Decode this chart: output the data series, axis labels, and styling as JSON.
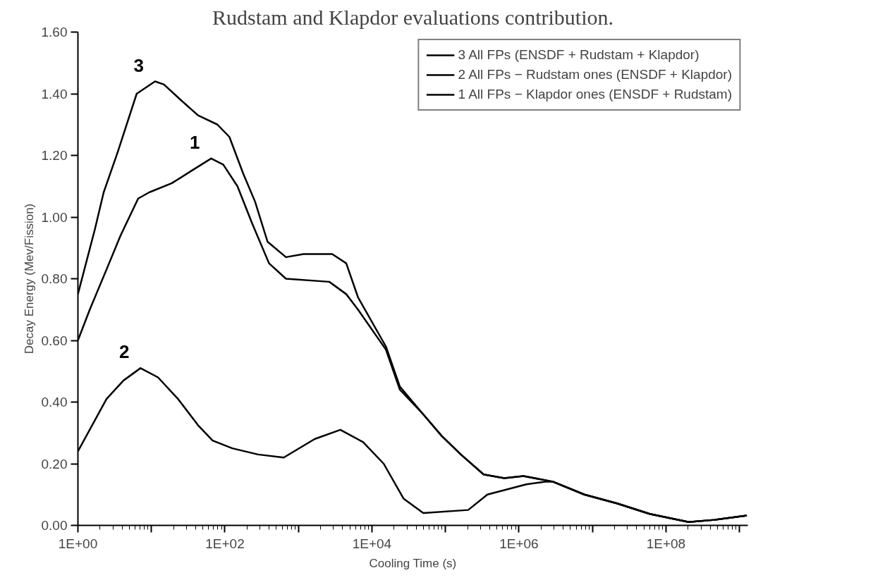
{
  "chart_data": {
    "type": "line",
    "title": "Rudstam and Klapdor evaluations contribution.",
    "xlabel": "Cooling Time (s)",
    "ylabel": "Decay Energy (Mev/Fission)",
    "log": "x",
    "grid": false,
    "legend": "top right",
    "marker": "none",
    "line_style": "solid",
    "xlim": [
      1,
      1300000000
    ],
    "ylim": [
      0,
      1.6
    ],
    "xticks": [
      {
        "value": 1,
        "label": "1E+00"
      },
      {
        "value": 10,
        "label": null
      },
      {
        "value": 100,
        "label": "1E+02"
      },
      {
        "value": 1000,
        "label": null
      },
      {
        "value": 10000,
        "label": "1E+04"
      },
      {
        "value": 100000,
        "label": null
      },
      {
        "value": 1000000,
        "label": "1E+06"
      },
      {
        "value": 10000000,
        "label": null
      },
      {
        "value": 100000000,
        "label": "1E+08"
      },
      {
        "value": 1000000000,
        "label": null
      }
    ],
    "yticks": [
      {
        "value": 0,
        "label": "0.00"
      },
      {
        "value": 0.2,
        "label": "0.20"
      },
      {
        "value": 0.4,
        "label": "0.40"
      },
      {
        "value": 0.6,
        "label": "0.60"
      },
      {
        "value": 0.8,
        "label": "0.80"
      },
      {
        "value": 1,
        "label": "1.00"
      },
      {
        "value": 1.2,
        "label": "1.20"
      },
      {
        "value": 1.4,
        "label": "1.40"
      },
      {
        "value": 1.6,
        "label": "1.60"
      }
    ],
    "series": [
      {
        "name": "3 All FPs (ENSDF + Rudstam + Klapdor)",
        "color": "#000000",
        "x": [
          1,
          1.7,
          2.24,
          3.47,
          6.3,
          11.2,
          14.8,
          25,
          43,
          79,
          115,
          178,
          257,
          380,
          676,
          1175,
          2880,
          4470,
          6460,
          15500,
          24000,
          50000,
          89000,
          162000,
          331000,
          631000,
          1150000,
          2880000,
          7760000,
          21900000,
          60300000,
          204000000,
          457000000,
          1260000000
        ],
        "values": [
          0.75,
          0.96,
          1.08,
          1.21,
          1.4,
          1.44,
          1.43,
          1.38,
          1.33,
          1.3,
          1.26,
          1.14,
          1.05,
          0.92,
          0.87,
          0.88,
          0.88,
          0.85,
          0.74,
          0.58,
          0.45,
          0.36,
          0.29,
          0.23,
          0.165,
          0.153,
          0.16,
          0.142,
          0.1,
          0.071,
          0.037,
          0.011,
          0.018,
          0.032
        ]
      },
      {
        "name": "2 All FPs − Rudstam ones (ENSDF + Klapdor)",
        "color": "#000000",
        "x": [
          1,
          2.45,
          4.17,
          7.1,
          12.3,
          23,
          43,
          68,
          126,
          282,
          631,
          1660,
          3715,
          7590,
          14450,
          26900,
          50000,
          204000,
          372000,
          1260000,
          2340000,
          2880000,
          7760000,
          21900000,
          60300000,
          204000000,
          457000000,
          1260000000
        ],
        "values": [
          0.24,
          0.41,
          0.47,
          0.51,
          0.48,
          0.41,
          0.325,
          0.275,
          0.25,
          0.23,
          0.22,
          0.28,
          0.31,
          0.27,
          0.2,
          0.087,
          0.04,
          0.05,
          0.1,
          0.133,
          0.142,
          0.142,
          0.1,
          0.071,
          0.037,
          0.011,
          0.018,
          0.032
        ]
      },
      {
        "name": "1 All FPs − Klapdor ones (ENSDF + Rudstam)",
        "color": "#000000",
        "x": [
          1,
          1.45,
          2.45,
          3.8,
          6.6,
          9.3,
          19,
          35,
          65,
          95,
          148,
          234,
          398,
          676,
          2630,
          4470,
          6460,
          15500,
          24000,
          50000,
          89000,
          162000,
          331000,
          631000,
          1150000,
          2880000,
          7760000,
          21900000,
          60300000,
          204000000,
          457000000,
          1260000000
        ],
        "values": [
          0.6,
          0.7,
          0.83,
          0.94,
          1.06,
          1.08,
          1.11,
          1.15,
          1.19,
          1.17,
          1.1,
          0.98,
          0.85,
          0.8,
          0.79,
          0.75,
          0.7,
          0.57,
          0.44,
          0.36,
          0.29,
          0.23,
          0.165,
          0.153,
          0.16,
          0.142,
          0.1,
          0.071,
          0.037,
          0.011,
          0.018,
          0.032
        ]
      }
    ],
    "annotations": [
      "3",
      "2",
      "1"
    ]
  }
}
